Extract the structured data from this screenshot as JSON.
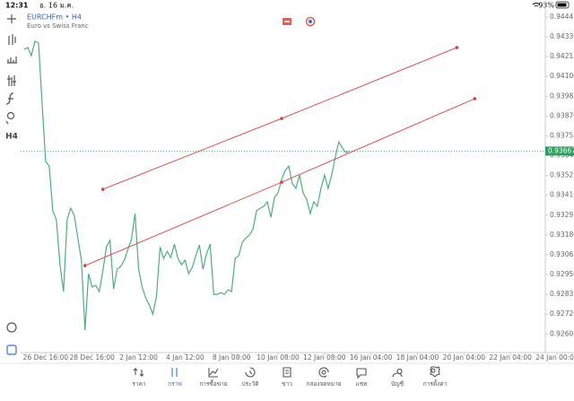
{
  "status_bar": {
    "time": "12:31",
    "date": "อ. 16 ม.ค.",
    "battery": "93%"
  },
  "toolbar": {
    "timeframe": "H4"
  },
  "chart_data": {
    "type": "line",
    "title": "EURCHFm • H4",
    "subtitle": "Euro vs Swiss Franc",
    "color": "#4cb07e",
    "values": [
      0.94257,
      0.94268,
      0.94221,
      0.94304,
      0.94294,
      0.93945,
      0.93606,
      0.9358,
      0.9332,
      0.93268,
      0.93007,
      0.92851,
      0.93268,
      0.93335,
      0.93294,
      0.93163,
      0.93033,
      0.92627,
      0.92955,
      0.92877,
      0.92887,
      0.92851,
      0.92971,
      0.93111,
      0.93148,
      0.92866,
      0.92981,
      0.92997,
      0.93033,
      0.93096,
      0.93153,
      0.93304,
      0.92981,
      0.92877,
      0.92814,
      0.92773,
      0.9272,
      0.92825,
      0.93111,
      0.93044,
      0.93085,
      0.93049,
      0.93127,
      0.93044,
      0.93007,
      0.93033,
      0.92955,
      0.92991,
      0.93059,
      0.93122,
      0.92981,
      0.9307,
      0.93127,
      0.92835,
      0.92835,
      0.92845,
      0.92835,
      0.92861,
      0.92851,
      0.93044,
      0.93059,
      0.93137,
      0.93163,
      0.93179,
      0.93215,
      0.9332,
      0.93335,
      0.93346,
      0.93372,
      0.93283,
      0.93398,
      0.93424,
      0.93502,
      0.93554,
      0.9358,
      0.93476,
      0.9345,
      0.93528,
      0.93424,
      0.93387,
      0.93304,
      0.93372,
      0.93346,
      0.9345,
      0.93528,
      0.9345,
      0.93528,
      0.93632,
      0.93721,
      0.93684,
      0.93658,
      0.93667
    ],
    "last_price": 0.93667,
    "last_price_color": "#2e9e5e",
    "trendlines": [
      {
        "color": "#e03c3c",
        "points": [
          {
            "x": 22,
            "y": 0.93445
          },
          {
            "x": 72,
            "y": 0.93856
          },
          {
            "x": 121,
            "y": 0.94268
          }
        ]
      },
      {
        "color": "#e03c3c",
        "points": [
          {
            "x": 17,
            "y": 0.93002
          },
          {
            "x": 72,
            "y": 0.93486
          },
          {
            "x": 126,
            "y": 0.93971
          }
        ]
      }
    ],
    "xlim": [
      -1,
      146
    ],
    "ylim": [
      0.92497,
      0.94518
    ],
    "xticks": [
      {
        "value": 6,
        "label": "26 Dec 16:00"
      },
      {
        "value": 19,
        "label": "28 Dec 16:00"
      },
      {
        "value": 32,
        "label": "2 Jan 12:00"
      },
      {
        "value": 45,
        "label": "4 Jan 12:00"
      },
      {
        "value": 58,
        "label": "8 Jan 08:00"
      },
      {
        "value": 71,
        "label": "10 Jan 08:00"
      },
      {
        "value": 84,
        "label": "12 Jan 08:00"
      },
      {
        "value": 97,
        "label": "16 Jan 04:00"
      },
      {
        "value": 110,
        "label": "18 Jan 04:00"
      },
      {
        "value": 123,
        "label": "20 Jan 04:00"
      },
      {
        "value": 136,
        "label": "22 Jan 04:00"
      },
      {
        "value": 149,
        "label": "24 Jan 00:00"
      }
    ],
    "yticks": [
      0.94445,
      {
        "value": 0.9433,
        "label": "0.94330"
      },
      0.94215,
      {
        "value": 0.941,
        "label": "0.94100"
      },
      0.93985,
      {
        "value": 0.9387,
        "label": "0.93870"
      },
      0.93755,
      {
        "value": 0.9364,
        "label": "0.93640"
      },
      0.93525,
      {
        "value": 0.9341,
        "label": "0.93410"
      },
      0.93295,
      {
        "value": 0.9318,
        "label": "0.93180"
      },
      0.93065,
      {
        "value": 0.9295,
        "label": "0.92950"
      },
      0.92835,
      {
        "value": 0.9272,
        "label": "0.92720"
      },
      0.92605
    ]
  },
  "nav": {
    "items": [
      "ราคา",
      "กราฟ",
      "การซื้อขาย",
      "ประวัติ",
      "ข่าว",
      "กล่องจดหมาย",
      "แชท",
      "บัญชี",
      "การตั้งค่า"
    ],
    "active": 1
  }
}
